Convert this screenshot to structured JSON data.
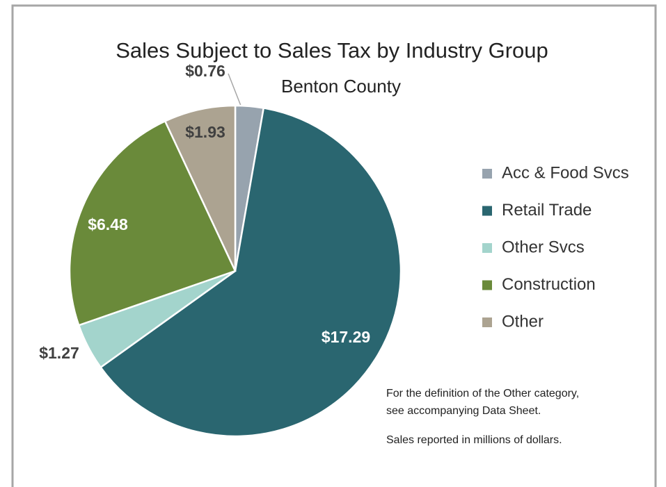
{
  "chart_data": {
    "type": "pie",
    "title": "Sales Subject to Sales Tax by Industry Group",
    "subtitle": "Benton County",
    "categories": [
      "Acc & Food Svcs",
      "Retail Trade",
      "Other Svcs",
      "Construction",
      "Other"
    ],
    "values": [
      0.76,
      17.29,
      1.27,
      6.48,
      1.93
    ],
    "value_labels": [
      "$0.76",
      "$17.29",
      "$1.27",
      "$6.48",
      "$1.93"
    ],
    "colors": [
      "#97a3ae",
      "#2a6670",
      "#a3d4cc",
      "#6a8a3a",
      "#aca391"
    ],
    "notes": [
      "For the definition of the Other category,",
      "see accompanying Data Sheet.",
      "Sales reported in millions of dollars."
    ]
  }
}
